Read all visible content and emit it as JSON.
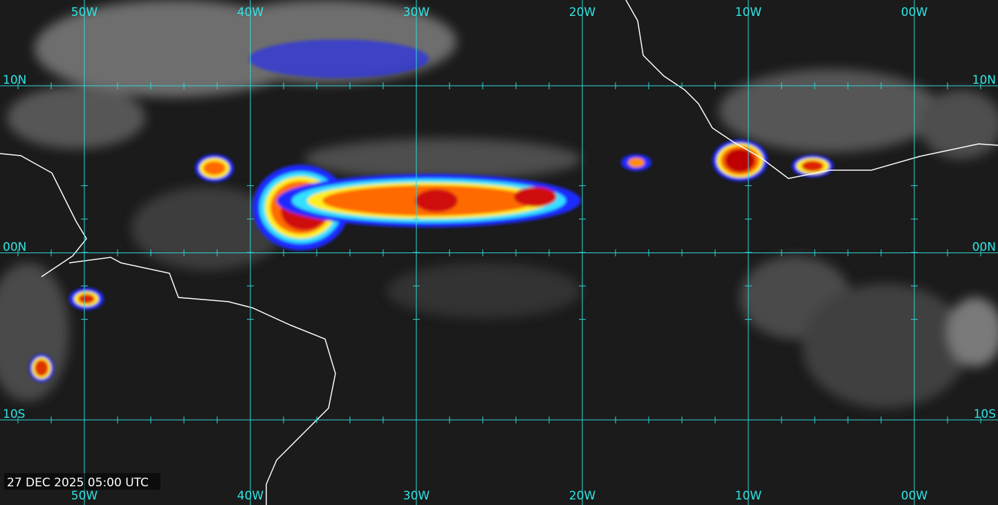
{
  "map": {
    "longitudes": [
      "50W",
      "40W",
      "30W",
      "20W",
      "10W",
      "00W"
    ],
    "latitudes": [
      "10N",
      "00N",
      "10S"
    ],
    "timestamp": "27 DEC 2025 05:00 UTC"
  }
}
